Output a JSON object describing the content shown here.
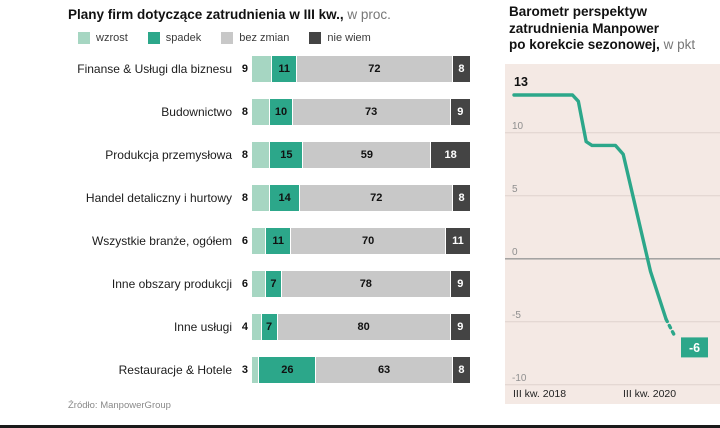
{
  "source": "Źródło: ManpowerGroup",
  "left_chart": {
    "title_bold": "Plany firm dotyczące zatrudnienia w III kw.,",
    "title_light": " w proc."
  },
  "right_chart": {
    "lines": [
      {
        "bold": "Barometr  perspektyw",
        "light": ""
      },
      {
        "bold": "zatrudnienia Manpower",
        "light": ""
      },
      {
        "bold": "po korekcie sezonowej,",
        "light": " w pkt"
      }
    ]
  },
  "chart_data": [
    {
      "type": "bar",
      "stacked": true,
      "orientation": "horizontal",
      "title": "Plany firm dotyczące zatrudnienia w III kw., w proc.",
      "categories": [
        "Finanse & Usługi dla biznesu",
        "Budownictwo",
        "Produkcja przemysłowa",
        "Handel detaliczny i hurtowy",
        "Wszystkie branże, ogółem",
        "Inne obszary produkcji",
        "Inne usługi",
        "Restauracje & Hotele"
      ],
      "series": [
        {
          "name": "wzrost",
          "color": "#A6D6C2",
          "values": [
            9,
            8,
            8,
            8,
            6,
            6,
            4,
            3
          ]
        },
        {
          "name": "spadek",
          "color": "#2CA78A",
          "values": [
            11,
            10,
            15,
            14,
            11,
            7,
            7,
            26
          ]
        },
        {
          "name": "bez zmian",
          "color": "#C8C8C8",
          "values": [
            72,
            73,
            59,
            72,
            70,
            78,
            80,
            63
          ]
        },
        {
          "name": "nie wiem",
          "color": "#444444",
          "values": [
            8,
            9,
            18,
            8,
            11,
            9,
            9,
            8
          ]
        }
      ],
      "xlim": [
        0,
        100
      ],
      "source": "ManpowerGroup"
    },
    {
      "type": "line",
      "title": "Barometr perspektyw zatrudnienia Manpower po korekcie sezonowej, w pkt",
      "ylim": [
        -10,
        13
      ],
      "yticks": [
        10,
        5,
        0,
        -5,
        -10
      ],
      "x_axis_labels": [
        "III kw. 2018",
        "III kw. 2020"
      ],
      "line_color": "#2CA78A",
      "background": "#F4E9E4",
      "start_value": 13,
      "end_value": -6,
      "start_label": "13",
      "end_label": "-6",
      "points": [
        {
          "x": 0.0,
          "y": 13
        },
        {
          "x": 0.3,
          "y": 13
        },
        {
          "x": 0.33,
          "y": 12.5
        },
        {
          "x": 0.37,
          "y": 9.3
        },
        {
          "x": 0.4,
          "y": 9
        },
        {
          "x": 0.52,
          "y": 9
        },
        {
          "x": 0.56,
          "y": 8.3
        },
        {
          "x": 0.7,
          "y": -1
        },
        {
          "x": 0.78,
          "y": -4.8
        },
        {
          "x": 0.82,
          "y": -6
        }
      ]
    }
  ]
}
